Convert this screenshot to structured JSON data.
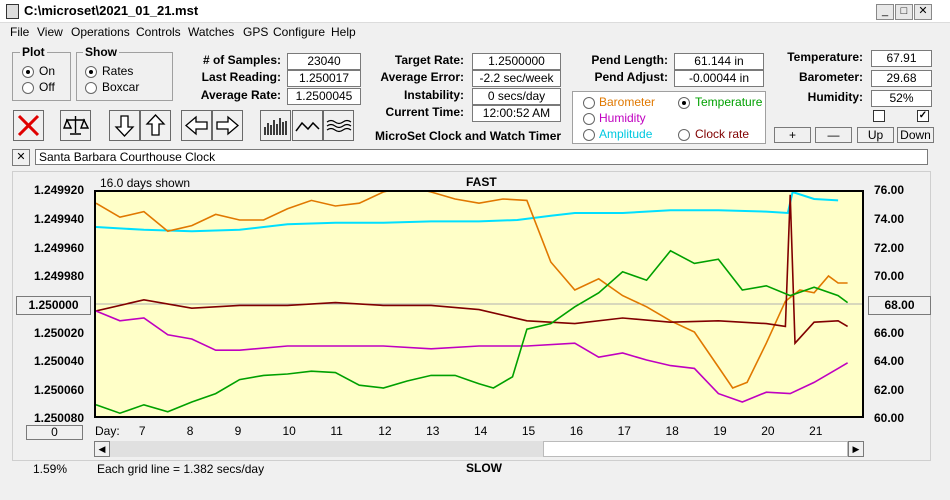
{
  "window": {
    "title": "C:\\microset\\2021_01_21.mst"
  },
  "menu": {
    "items": [
      "File",
      "View",
      "Operations",
      "Controls",
      "Watches",
      "GPS",
      "Configure",
      "Help"
    ]
  },
  "plot_group": {
    "label": "Plot",
    "on": "On",
    "off": "Off",
    "selected": "On"
  },
  "show_group": {
    "label": "Show",
    "rates": "Rates",
    "boxcar": "Boxcar",
    "selected": "Rates"
  },
  "stats": {
    "samples_label": "# of Samples:",
    "samples": "23040",
    "last_reading_label": "Last Reading:",
    "last_reading": "1.250017",
    "avg_rate_label": "Average Rate:",
    "avg_rate": "1.2500045",
    "target_rate_label": "Target Rate:",
    "target_rate": "1.2500000",
    "avg_error_label": "Average Error:",
    "avg_error": "-2.2 sec/week",
    "instability_label": "Instability:",
    "instability": "0 secs/day",
    "current_time_label": "Current Time:",
    "current_time": "12:00:52 AM",
    "pend_length_label": "Pend Length:",
    "pend_length": "61.144 in",
    "pend_adjust_label": "Pend Adjust:",
    "pend_adjust": "-0.00044 in",
    "temperature_label": "Temperature:",
    "temperature": "67.91",
    "barometer_label": "Barometer:",
    "barometer": "29.68",
    "humidity_label": "Humidity:",
    "humidity": "52%"
  },
  "app_caption": "MicroSet Clock and Watch Timer",
  "sensor_options": {
    "barometer": "Barometer",
    "temperature": "Temperature",
    "humidity": "Humidity",
    "amplitude": "Amplitude",
    "clock_rate": "Clock rate",
    "selected": "Temperature",
    "colors": {
      "barometer": "#e07800",
      "temperature": "#00a000",
      "humidity": "#c000c0",
      "amplitude": "#00c8e0",
      "clock_rate": "#800000"
    }
  },
  "adjust_buttons": {
    "plus": "+",
    "minus": "—",
    "up": "Up",
    "down": "Down"
  },
  "clock_name": {
    "close": "✕",
    "value": "Santa Barbara Courthouse Clock"
  },
  "chart_labels": {
    "days_shown": "16.0 days shown",
    "fast": "FAST",
    "slow": "SLOW",
    "grid_note": "Each grid line = 1.382 secs/day",
    "day_label": "Day:",
    "percent": "1.59%",
    "left_button": "1.250000",
    "right_button": "68.00",
    "zero_button": "0"
  },
  "chart_data": {
    "type": "line",
    "x_label": "Day:",
    "xlim": [
      6,
      22
    ],
    "x_ticks": [
      7,
      8,
      9,
      10,
      11,
      12,
      13,
      14,
      15,
      16,
      17,
      18,
      19,
      20,
      21
    ],
    "y_left_ticks": [
      "1.249920",
      "1.249940",
      "1.249960",
      "1.249980",
      "1.250000",
      "1.250020",
      "1.250040",
      "1.250060",
      "1.250080"
    ],
    "y_left_range": [
      1.25008,
      1.24992
    ],
    "y_right_ticks": [
      "76.00",
      "74.00",
      "72.00",
      "70.00",
      "68.00",
      "66.00",
      "64.00",
      "62.00",
      "60.00"
    ],
    "y_right_range": [
      60,
      76
    ],
    "grid": false,
    "series": [
      {
        "color": "#00e0ff",
        "axis": "right",
        "x": [
          6,
          7,
          8,
          9,
          10,
          11,
          12,
          13,
          14,
          14.8,
          15.5,
          16,
          17,
          18,
          19,
          20,
          20.45,
          20.55,
          21,
          21.5
        ],
        "y": [
          73.5,
          73.3,
          73.2,
          73.3,
          73.7,
          73.8,
          73.8,
          73.9,
          73.9,
          74.0,
          74.3,
          74.5,
          74.5,
          74.7,
          74.7,
          74.6,
          74.5,
          76.0,
          75.5,
          75.4
        ]
      },
      {
        "color": "#e07800",
        "axis": "left",
        "x": [
          6,
          6.5,
          7,
          7.5,
          8,
          8.5,
          9,
          9.5,
          10,
          10.5,
          11,
          11.5,
          12,
          12.5,
          13,
          13.5,
          14,
          14.5,
          15,
          15.5,
          16,
          16.5,
          17,
          17.5,
          18,
          18.5,
          19,
          19.3,
          19.6,
          20,
          20.4,
          20.7,
          21,
          21.3,
          21.5,
          21.7
        ],
        "y": [
          1.249928,
          1.249938,
          1.249934,
          1.249948,
          1.249944,
          1.249936,
          1.24994,
          1.24994,
          1.249932,
          1.249926,
          1.24993,
          1.249928,
          1.24992,
          1.249916,
          1.24992,
          1.249925,
          1.249928,
          1.249925,
          1.249926,
          1.24997,
          1.24999,
          1.249982,
          1.249994,
          1.250002,
          1.250012,
          1.25002,
          1.250045,
          1.25006,
          1.250056,
          1.250028,
          1.249998,
          1.24999,
          1.249992,
          1.24998,
          1.249985,
          1.249985
        ]
      },
      {
        "color": "#800000",
        "axis": "left",
        "x": [
          6,
          7,
          8,
          9,
          10,
          11,
          12,
          13,
          14,
          15,
          16,
          17,
          18,
          19,
          20,
          20.4,
          20.5,
          20.6,
          21,
          21.5,
          21.7
        ],
        "y": [
          1.250005,
          1.249997,
          1.250003,
          1.250001,
          1.250001,
          1.249999,
          1.250001,
          1.250001,
          1.250004,
          1.250012,
          1.250014,
          1.25001,
          1.250013,
          1.250012,
          1.250014,
          1.250016,
          1.249922,
          1.250028,
          1.250013,
          1.250012,
          1.250016
        ]
      },
      {
        "color": "#c000c0",
        "axis": "left",
        "x": [
          6,
          6.5,
          7,
          7.5,
          8,
          8.5,
          9,
          10,
          11,
          12,
          13,
          14,
          15,
          16,
          16.5,
          17,
          17.5,
          18,
          18.5,
          19,
          19.5,
          20,
          20.5,
          21,
          21.5,
          21.7
        ],
        "y": [
          1.250005,
          1.250012,
          1.25001,
          1.250022,
          1.250025,
          1.250033,
          1.250033,
          1.25003,
          1.25003,
          1.25003,
          1.250032,
          1.25003,
          1.25003,
          1.250028,
          1.250038,
          1.250035,
          1.25004,
          1.250044,
          1.250046,
          1.250064,
          1.25007,
          1.250063,
          1.250064,
          1.250056,
          1.250046,
          1.250042
        ]
      },
      {
        "color": "#00a000",
        "axis": "right",
        "x": [
          6,
          6.5,
          7,
          7.5,
          8,
          8.5,
          9,
          9.5,
          10,
          10.5,
          11,
          11.5,
          12,
          12.5,
          13,
          13.5,
          14,
          14.3,
          14.7,
          15,
          15.5,
          16,
          16.5,
          17,
          17.5,
          18,
          18.5,
          19,
          19.5,
          20,
          20.5,
          21,
          21.5,
          21.7
        ],
        "y": [
          60.8,
          60.2,
          60.8,
          60.3,
          61.0,
          61.6,
          62.6,
          62.9,
          63.0,
          63.2,
          63.1,
          62.2,
          62.0,
          62.5,
          62.9,
          62.9,
          62.3,
          62.0,
          62.8,
          66.2,
          66.6,
          67.8,
          68.8,
          70.3,
          69.7,
          71.8,
          70.9,
          71.2,
          69.0,
          69.3,
          68.6,
          69.2,
          68.6,
          68.1
        ]
      }
    ]
  }
}
